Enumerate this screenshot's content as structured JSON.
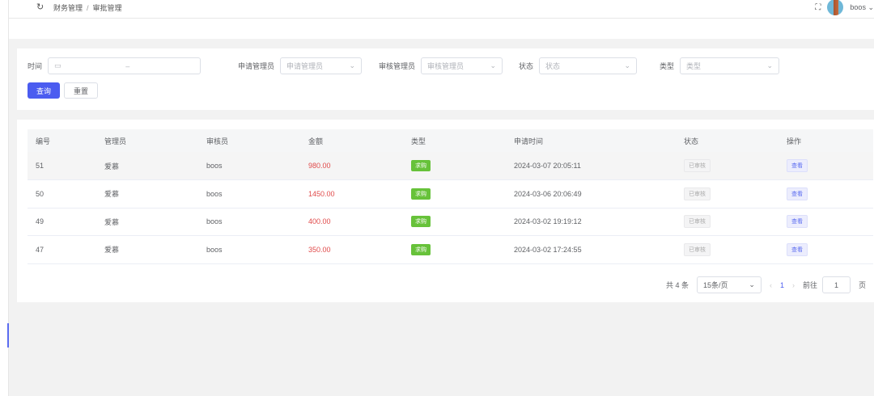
{
  "header": {
    "breadcrumb": [
      "财务管理",
      "审批管理"
    ],
    "user": "boos"
  },
  "filters": {
    "time_label": "时间",
    "time_sep": "–",
    "applicant_label": "申请管理员",
    "applicant_placeholder": "申请管理员",
    "reviewer_label": "审核管理员",
    "reviewer_placeholder": "审核管理员",
    "status_label": "状态",
    "status_placeholder": "状态",
    "type_label": "类型",
    "type_placeholder": "类型",
    "search": "查询",
    "reset": "重置"
  },
  "table": {
    "columns": [
      "编号",
      "管理员",
      "审核员",
      "金额",
      "类型",
      "申请时间",
      "状态",
      "操作"
    ],
    "rows": [
      {
        "id": "51",
        "admin": "爱慕",
        "reviewer": "boos",
        "amount": "980.00",
        "type": "求购",
        "time": "2024-03-07 20:05:11",
        "status": "已审核",
        "action": "查看"
      },
      {
        "id": "50",
        "admin": "爱慕",
        "reviewer": "boos",
        "amount": "1450.00",
        "type": "求购",
        "time": "2024-03-06 20:06:49",
        "status": "已审核",
        "action": "查看"
      },
      {
        "id": "49",
        "admin": "爱慕",
        "reviewer": "boos",
        "amount": "400.00",
        "type": "求购",
        "time": "2024-03-02 19:19:12",
        "status": "已审核",
        "action": "查看"
      },
      {
        "id": "47",
        "admin": "爱慕",
        "reviewer": "boos",
        "amount": "350.00",
        "type": "求购",
        "time": "2024-03-02 17:24:55",
        "status": "已审核",
        "action": "查看"
      }
    ]
  },
  "pagination": {
    "total": "共 4 条",
    "page_size": "15条/页",
    "current": "1",
    "goto_label": "前往",
    "goto_value": "1",
    "page_suffix": "页"
  },
  "colors": {
    "primary": "#4b5cf0",
    "amount": "#e04a4a",
    "tag": "#67c23a"
  }
}
